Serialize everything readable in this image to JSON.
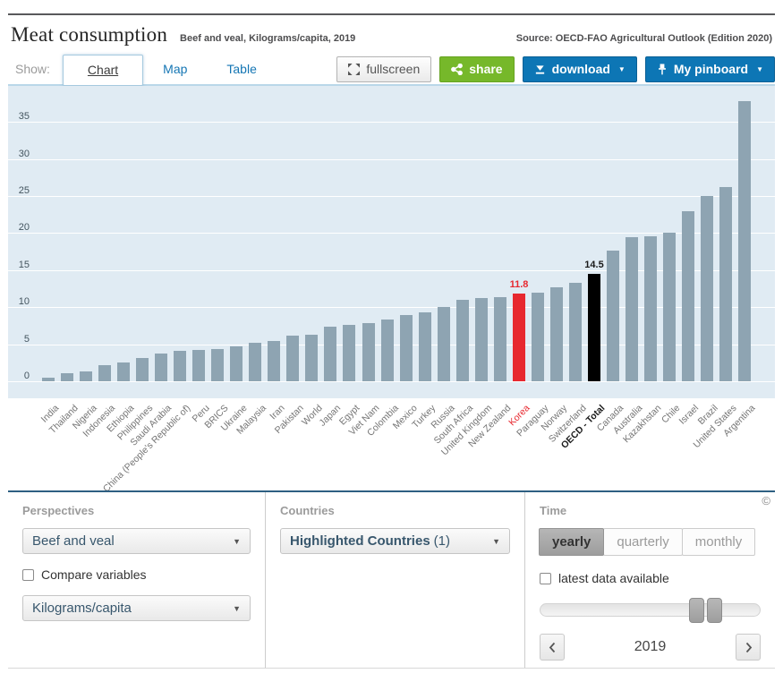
{
  "header": {
    "title": "Meat consumption",
    "subtitle": "Beef and veal, Kilograms/capita, 2019",
    "source": "Source: OECD-FAO Agricultural Outlook (Edition 2020)"
  },
  "toolbar": {
    "show_label": "Show:",
    "tabs": [
      {
        "label": "Chart",
        "active": true
      },
      {
        "label": "Map",
        "active": false
      },
      {
        "label": "Table",
        "active": false
      }
    ],
    "buttons": {
      "fullscreen": "fullscreen",
      "share": "share",
      "download": "download",
      "pinboard": "My pinboard"
    }
  },
  "chart_data": {
    "type": "bar",
    "title": "Meat consumption",
    "subtitle": "Beef and veal, Kilograms/capita, 2019",
    "ylabel": "Kilograms/capita",
    "ylim": [
      0,
      39.5
    ],
    "yticks": [
      0,
      5,
      10,
      15,
      20,
      25,
      30,
      35
    ],
    "grid": true,
    "legend": "none",
    "plot_bg": "#e0ebf3",
    "bar_color": "#8ea4b2",
    "items": [
      {
        "name": "India",
        "value": 0.5
      },
      {
        "name": "Thailand",
        "value": 1.1
      },
      {
        "name": "Nigeria",
        "value": 1.3
      },
      {
        "name": "Indonesia",
        "value": 2.2
      },
      {
        "name": "Ethiopia",
        "value": 2.5
      },
      {
        "name": "Philippines",
        "value": 3.1
      },
      {
        "name": "Saudi Arabia",
        "value": 3.7
      },
      {
        "name": "China (People's Republic of)",
        "value": 4.1
      },
      {
        "name": "Peru",
        "value": 4.2
      },
      {
        "name": "BRICS",
        "value": 4.4
      },
      {
        "name": "Ukraine",
        "value": 4.7
      },
      {
        "name": "Malaysia",
        "value": 5.2
      },
      {
        "name": "Iran",
        "value": 5.4
      },
      {
        "name": "Pakistan",
        "value": 6.1
      },
      {
        "name": "World",
        "value": 6.3
      },
      {
        "name": "Japan",
        "value": 7.4
      },
      {
        "name": "Egypt",
        "value": 7.6
      },
      {
        "name": "Viet Nam",
        "value": 7.9
      },
      {
        "name": "Colombia",
        "value": 8.3
      },
      {
        "name": "Mexico",
        "value": 8.9
      },
      {
        "name": "Turkey",
        "value": 9.3
      },
      {
        "name": "Russia",
        "value": 10.0
      },
      {
        "name": "South Africa",
        "value": 11.0
      },
      {
        "name": "United Kingdom",
        "value": 11.2
      },
      {
        "name": "New Zealand",
        "value": 11.4
      },
      {
        "name": "Korea",
        "value": 11.8,
        "color": "#e7282f",
        "value_label": "11.8",
        "label_color": "#e7282f"
      },
      {
        "name": "Paraguay",
        "value": 11.9
      },
      {
        "name": "Norway",
        "value": 12.7
      },
      {
        "name": "Switzerland",
        "value": 13.3
      },
      {
        "name": "OECD - Total",
        "value": 14.5,
        "color": "#000000",
        "value_label": "14.5",
        "label_color": "#1a1a1a",
        "label_bold": true
      },
      {
        "name": "Canada",
        "value": 17.6
      },
      {
        "name": "Australia",
        "value": 19.5
      },
      {
        "name": "Kazakhstan",
        "value": 19.6
      },
      {
        "name": "Chile",
        "value": 20.0
      },
      {
        "name": "Israel",
        "value": 23.0
      },
      {
        "name": "Brazil",
        "value": 25.0
      },
      {
        "name": "United States",
        "value": 26.2
      },
      {
        "name": "Argentina",
        "value": 37.8
      }
    ]
  },
  "filters": {
    "perspectives": {
      "heading": "Perspectives",
      "variable_select": "Beef and veal",
      "compare_label": "Compare variables",
      "compare_checked": false,
      "unit_select": "Kilograms/capita"
    },
    "countries": {
      "heading": "Countries",
      "selection_bold": "Highlighted Countries",
      "selection_count": "(1)"
    },
    "time": {
      "heading": "Time",
      "frequency_options": [
        "yearly",
        "quarterly",
        "monthly"
      ],
      "frequency_selected": "yearly",
      "latest_label": "latest data available",
      "latest_checked": false,
      "year": "2019"
    }
  },
  "copyright": "©"
}
